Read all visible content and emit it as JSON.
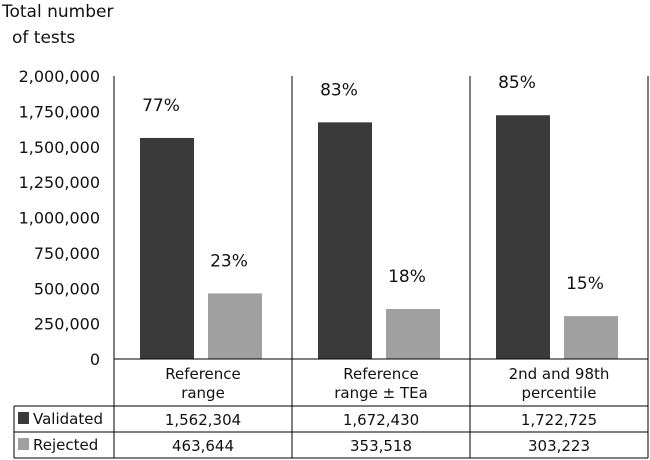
{
  "chart_data": {
    "type": "bar",
    "ylabel": [
      "Total number",
      "of tests"
    ],
    "ylim": [
      0,
      2000000
    ],
    "yticks": [
      "2,000,000",
      "1,750,000",
      "1,500,000",
      "1,250,000",
      "1,000,000",
      "750,000",
      "500,000",
      "250,000",
      "0"
    ],
    "ytick_values": [
      2000000,
      1750000,
      1500000,
      1250000,
      1000000,
      750000,
      500000,
      250000,
      0
    ],
    "categories": [
      [
        "Reference",
        "range"
      ],
      [
        "Reference",
        "range ± TEa"
      ],
      [
        "2nd and 98th",
        "percentile"
      ]
    ],
    "series": [
      {
        "name": "Validated",
        "color": "#3a3a3a",
        "values": [
          1562304,
          1672430,
          1722725
        ],
        "value_labels": [
          "1,562,304",
          "1,672,430",
          "1,722,725"
        ],
        "percent_labels": [
          "77%",
          "83%",
          "85%"
        ]
      },
      {
        "name": "Rejected",
        "color": "#a0a0a0",
        "values": [
          463644,
          353518,
          303223
        ],
        "value_labels": [
          "463,644",
          "353,518",
          "303,223"
        ],
        "percent_labels": [
          "23%",
          "18%",
          "15%"
        ]
      }
    ],
    "legend": "table-left",
    "grid": false
  }
}
